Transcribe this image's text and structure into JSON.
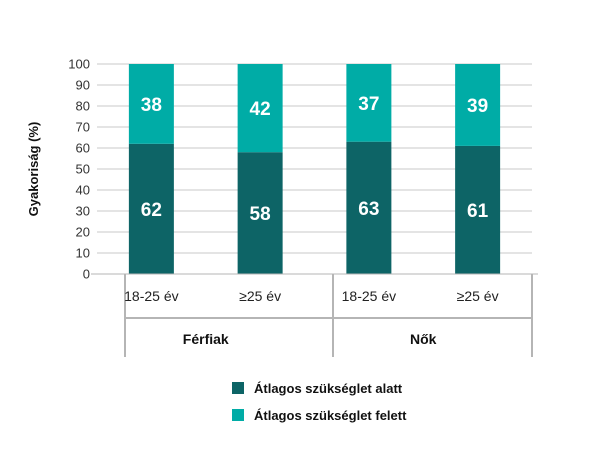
{
  "chart_data": {
    "type": "bar",
    "stacked": true,
    "ylabel": "Gyakoriság (%)",
    "ylim": [
      0,
      100
    ],
    "yticks": [
      0,
      10,
      20,
      30,
      40,
      50,
      60,
      70,
      80,
      90,
      100
    ],
    "grid": true,
    "categories": [
      "18-25 év",
      "≥25 év",
      "18-25 év",
      "≥25 év"
    ],
    "groups": [
      {
        "label": "Férfiak",
        "categories": [
          0,
          1
        ]
      },
      {
        "label": "Nők",
        "categories": [
          2,
          3
        ]
      }
    ],
    "series": [
      {
        "name": "Átlagos szükséglet alatt",
        "values": [
          62,
          58,
          63,
          61
        ],
        "color": "#0d6466"
      },
      {
        "name": "Átlagos szükséglet felett",
        "values": [
          38,
          42,
          37,
          39
        ],
        "color": "#00aca6"
      }
    ],
    "legend_position": "bottom"
  }
}
